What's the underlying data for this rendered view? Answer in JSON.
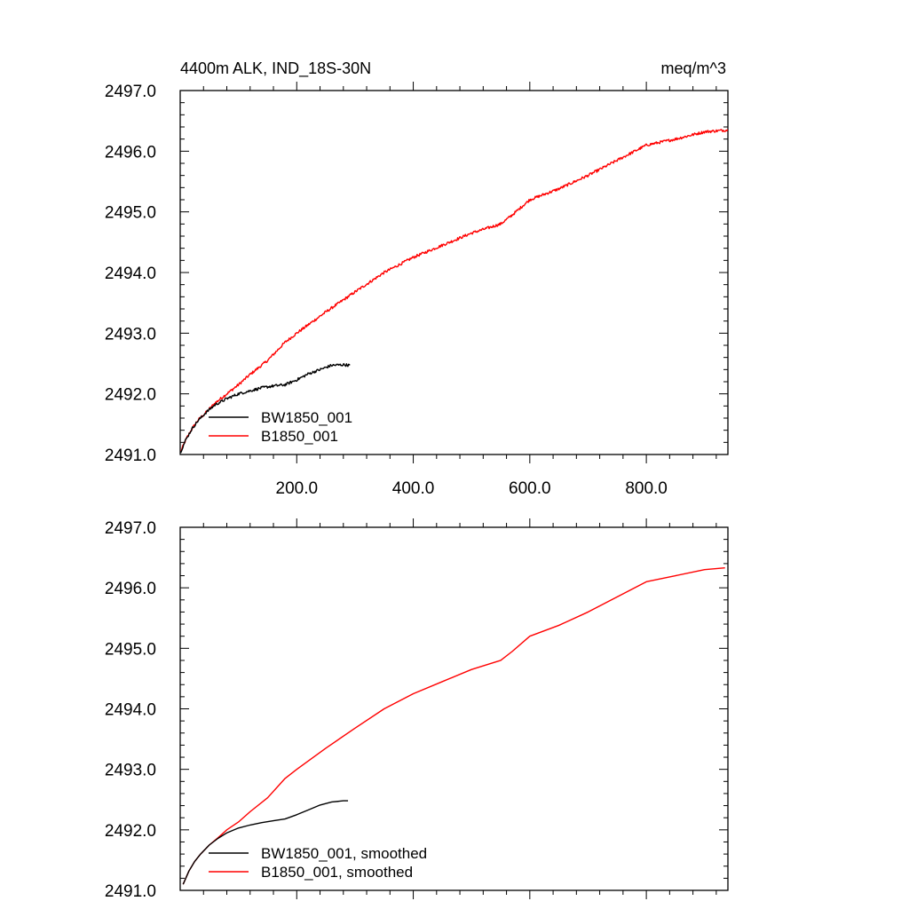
{
  "chart_data": [
    {
      "type": "line",
      "title_left": "4400m ALK, IND_18S-30N",
      "title_right": "meq/m^3",
      "xlabel": "",
      "ylabel": "",
      "xlim": [
        0,
        940
      ],
      "ylim": [
        2491.0,
        2497.0
      ],
      "x_ticks": [
        200,
        400,
        600,
        800
      ],
      "x_tick_labels": [
        "200.0",
        "400.0",
        "600.0",
        "800.0"
      ],
      "y_ticks": [
        2491,
        2492,
        2493,
        2494,
        2495,
        2496,
        2497
      ],
      "y_tick_labels": [
        "2491.0",
        "2492.0",
        "2493.0",
        "2494.0",
        "2495.0",
        "2496.0",
        "2497.0"
      ],
      "legend_position": "bottom-left",
      "series": [
        {
          "name": "BW1850_001",
          "color": "#000000",
          "noisy": true,
          "x": [
            1,
            10,
            20,
            30,
            45,
            60,
            80,
            100,
            120,
            140,
            160,
            180,
            200,
            220,
            240,
            260,
            280,
            292
          ],
          "y": [
            2491.05,
            2491.25,
            2491.42,
            2491.55,
            2491.7,
            2491.82,
            2491.92,
            2492.0,
            2492.05,
            2492.1,
            2492.13,
            2492.15,
            2492.23,
            2492.33,
            2492.4,
            2492.47,
            2492.48,
            2492.47
          ]
        },
        {
          "name": "B1850_001",
          "color": "#ff0000",
          "noisy": true,
          "x": [
            1,
            10,
            20,
            30,
            45,
            60,
            80,
            100,
            120,
            150,
            180,
            200,
            250,
            300,
            350,
            400,
            450,
            500,
            550,
            570,
            600,
            650,
            700,
            750,
            800,
            850,
            900,
            940
          ],
          "y": [
            2491.05,
            2491.25,
            2491.42,
            2491.56,
            2491.7,
            2491.85,
            2492.0,
            2492.15,
            2492.32,
            2492.55,
            2492.85,
            2493.0,
            2493.35,
            2493.68,
            2494.0,
            2494.25,
            2494.45,
            2494.65,
            2494.8,
            2494.95,
            2495.2,
            2495.38,
            2495.6,
            2495.85,
            2496.1,
            2496.2,
            2496.32,
            2496.35
          ]
        }
      ]
    },
    {
      "type": "line",
      "title_left": "",
      "title_right": "",
      "xlabel": "",
      "ylabel": "",
      "xlim": [
        0,
        940
      ],
      "ylim": [
        2491.0,
        2497.0
      ],
      "x_ticks": [
        200,
        400,
        600,
        800
      ],
      "x_tick_labels": [],
      "y_ticks": [
        2491,
        2492,
        2493,
        2494,
        2495,
        2496,
        2497
      ],
      "y_tick_labels": [
        "2491.0",
        "2492.0",
        "2493.0",
        "2494.0",
        "2495.0",
        "2496.0",
        "2497.0"
      ],
      "legend_position": "bottom-left",
      "series": [
        {
          "name": "BW1850_001, smoothed",
          "color": "#000000",
          "noisy": false,
          "x": [
            5,
            15,
            25,
            35,
            50,
            65,
            80,
            100,
            120,
            140,
            160,
            180,
            200,
            220,
            240,
            260,
            280,
            288
          ],
          "y": [
            2491.1,
            2491.32,
            2491.48,
            2491.6,
            2491.75,
            2491.86,
            2491.95,
            2492.03,
            2492.08,
            2492.12,
            2492.15,
            2492.18,
            2492.25,
            2492.33,
            2492.41,
            2492.46,
            2492.48,
            2492.48
          ]
        },
        {
          "name": "B1850_001, smoothed",
          "color": "#ff0000",
          "noisy": false,
          "x": [
            5,
            15,
            25,
            35,
            50,
            65,
            80,
            100,
            120,
            150,
            180,
            200,
            250,
            300,
            350,
            400,
            450,
            500,
            550,
            570,
            600,
            650,
            700,
            750,
            800,
            850,
            900,
            935
          ],
          "y": [
            2491.1,
            2491.32,
            2491.48,
            2491.6,
            2491.75,
            2491.87,
            2492.0,
            2492.13,
            2492.3,
            2492.53,
            2492.85,
            2493.0,
            2493.35,
            2493.68,
            2494.0,
            2494.25,
            2494.45,
            2494.65,
            2494.8,
            2494.95,
            2495.2,
            2495.38,
            2495.6,
            2495.85,
            2496.1,
            2496.2,
            2496.3,
            2496.33
          ]
        }
      ]
    }
  ]
}
